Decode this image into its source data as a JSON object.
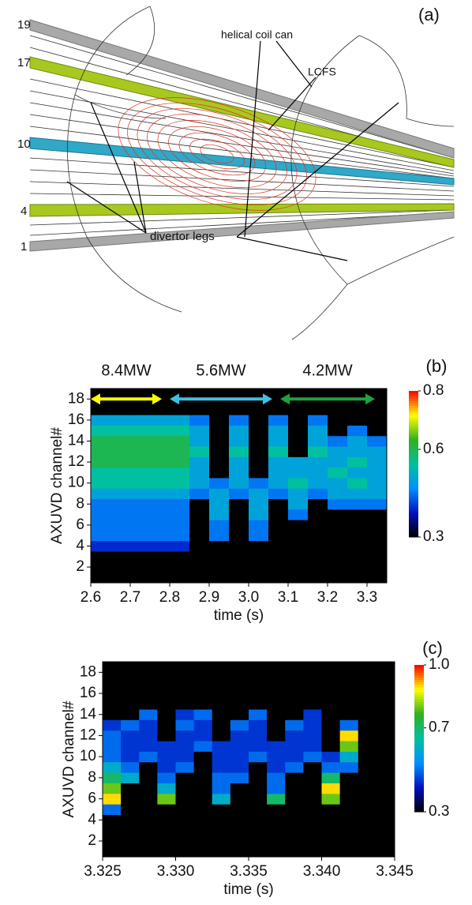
{
  "diagram": {
    "title": "(a)",
    "coil_labels": [
      "19",
      "17",
      "10",
      "4",
      "1"
    ],
    "annotations": [
      "helical coil can",
      "LCFS",
      "divertor legs"
    ]
  },
  "chart_data": [
    {
      "type": "heatmap",
      "title": "(b)",
      "xlabel": "time (s)",
      "ylabel": "AXUVD channel#",
      "xbins": [
        2.6,
        2.65,
        2.7,
        2.75,
        2.8,
        2.85,
        2.9,
        2.95,
        3.0,
        3.05,
        3.1,
        3.15,
        3.2,
        3.25,
        3.3,
        3.35
      ],
      "y": [
        1,
        2,
        3,
        4,
        5,
        6,
        7,
        8,
        9,
        10,
        11,
        12,
        13,
        14,
        15,
        16,
        17,
        18
      ],
      "z": [
        [
          0.3,
          0.3,
          0.3,
          0.3,
          0.3,
          0.3,
          0.3,
          0.3,
          0.3,
          0.3,
          0.3,
          0.3,
          0.3,
          0.3,
          0.3
        ],
        [
          0.3,
          0.3,
          0.3,
          0.3,
          0.3,
          0.3,
          0.3,
          0.3,
          0.3,
          0.3,
          0.3,
          0.3,
          0.3,
          0.3,
          0.3
        ],
        [
          0.3,
          0.3,
          0.3,
          0.3,
          0.3,
          0.3,
          0.3,
          0.3,
          0.3,
          0.3,
          0.3,
          0.3,
          0.3,
          0.3,
          0.3
        ],
        [
          0.4,
          0.4,
          0.4,
          0.4,
          0.4,
          0.3,
          0.3,
          0.3,
          0.3,
          0.3,
          0.3,
          0.3,
          0.3,
          0.3,
          0.3
        ],
        [
          0.45,
          0.45,
          0.45,
          0.45,
          0.45,
          0.3,
          0.45,
          0.3,
          0.45,
          0.3,
          0.3,
          0.3,
          0.3,
          0.3,
          0.3
        ],
        [
          0.45,
          0.45,
          0.45,
          0.45,
          0.45,
          0.3,
          0.45,
          0.3,
          0.45,
          0.3,
          0.3,
          0.3,
          0.3,
          0.3,
          0.3
        ],
        [
          0.45,
          0.45,
          0.45,
          0.45,
          0.45,
          0.3,
          0.5,
          0.3,
          0.5,
          0.3,
          0.45,
          0.3,
          0.3,
          0.3,
          0.3
        ],
        [
          0.45,
          0.45,
          0.45,
          0.45,
          0.45,
          0.3,
          0.5,
          0.3,
          0.5,
          0.3,
          0.5,
          0.3,
          0.45,
          0.45,
          0.45
        ],
        [
          0.5,
          0.5,
          0.5,
          0.5,
          0.5,
          0.45,
          0.5,
          0.45,
          0.5,
          0.45,
          0.5,
          0.45,
          0.5,
          0.5,
          0.5
        ],
        [
          0.55,
          0.55,
          0.55,
          0.55,
          0.55,
          0.5,
          0.45,
          0.5,
          0.45,
          0.5,
          0.55,
          0.5,
          0.5,
          0.55,
          0.5
        ],
        [
          0.55,
          0.55,
          0.55,
          0.55,
          0.55,
          0.5,
          0.3,
          0.5,
          0.3,
          0.5,
          0.5,
          0.5,
          0.55,
          0.5,
          0.5
        ],
        [
          0.6,
          0.6,
          0.6,
          0.6,
          0.6,
          0.5,
          0.3,
          0.5,
          0.3,
          0.5,
          0.5,
          0.5,
          0.5,
          0.55,
          0.5
        ],
        [
          0.6,
          0.6,
          0.6,
          0.6,
          0.6,
          0.55,
          0.3,
          0.55,
          0.3,
          0.55,
          0.3,
          0.55,
          0.5,
          0.5,
          0.5
        ],
        [
          0.6,
          0.6,
          0.6,
          0.6,
          0.6,
          0.5,
          0.3,
          0.5,
          0.3,
          0.5,
          0.3,
          0.5,
          0.45,
          0.5,
          0.45
        ],
        [
          0.55,
          0.55,
          0.55,
          0.55,
          0.55,
          0.5,
          0.3,
          0.5,
          0.3,
          0.5,
          0.3,
          0.5,
          0.3,
          0.45,
          0.3
        ],
        [
          0.5,
          0.5,
          0.5,
          0.5,
          0.5,
          0.45,
          0.3,
          0.45,
          0.3,
          0.45,
          0.3,
          0.45,
          0.3,
          0.3,
          0.3
        ],
        [
          0.3,
          0.3,
          0.3,
          0.3,
          0.3,
          0.3,
          0.3,
          0.3,
          0.3,
          0.3,
          0.3,
          0.3,
          0.3,
          0.3,
          0.3
        ],
        [
          0.3,
          0.3,
          0.3,
          0.3,
          0.3,
          0.3,
          0.3,
          0.3,
          0.3,
          0.3,
          0.3,
          0.3,
          0.3,
          0.3,
          0.3
        ]
      ],
      "xlim": [
        2.6,
        3.35
      ],
      "ylim": [
        0.5,
        19
      ],
      "xticks": [
        2.6,
        2.7,
        2.8,
        2.9,
        {
          "value": 3,
          "label": "3.0"
        },
        3.1,
        3.2,
        3.3
      ],
      "yticks": [
        2,
        4,
        6,
        8,
        10,
        12,
        14,
        16,
        18
      ],
      "clim": [
        0.3,
        0.8
      ],
      "cticks": [
        0.3,
        0.6,
        0.8
      ],
      "colorscale": [
        "#000000",
        "#0010c0",
        "#0090ff",
        "#00c0a0",
        "#30b020",
        "#ffff00",
        "#ff0000"
      ],
      "annotations": [
        {
          "text": "8.4MW",
          "x0": 2.6,
          "x1": 2.78,
          "y": 18,
          "color": "#ffff00"
        },
        {
          "text": "5.6MW",
          "x0": 2.8,
          "x1": 3.06,
          "y": 18,
          "color": "#40c0e0"
        },
        {
          "text": "4.2MW",
          "x0": 3.08,
          "x1": 3.32,
          "y": 18,
          "color": "#20a040"
        }
      ]
    },
    {
      "type": "heatmap",
      "title": "(c)",
      "xlabel": "time (s)",
      "ylabel": "AXUVD channel#",
      "xbins": [
        3.325,
        3.32625,
        3.3275,
        3.32875,
        3.33,
        3.33125,
        3.3325,
        3.33375,
        3.335,
        3.33625,
        3.3375,
        3.33875,
        3.34,
        3.34125,
        3.3425,
        3.34375,
        3.345
      ],
      "y": [
        1,
        2,
        3,
        4,
        5,
        6,
        7,
        8,
        9,
        10,
        11,
        12,
        13,
        14,
        15,
        16,
        17,
        18
      ],
      "z": [
        [
          0.3,
          0.3,
          0.3,
          0.3,
          0.3,
          0.3,
          0.3,
          0.3,
          0.3,
          0.3,
          0.3,
          0.3,
          0.3,
          0.3,
          0.3,
          0.3
        ],
        [
          0.3,
          0.3,
          0.3,
          0.3,
          0.3,
          0.3,
          0.3,
          0.3,
          0.3,
          0.3,
          0.3,
          0.3,
          0.3,
          0.3,
          0.3,
          0.3
        ],
        [
          0.3,
          0.3,
          0.3,
          0.3,
          0.3,
          0.3,
          0.3,
          0.3,
          0.3,
          0.3,
          0.3,
          0.3,
          0.3,
          0.3,
          0.3,
          0.3
        ],
        [
          0.3,
          0.3,
          0.3,
          0.3,
          0.3,
          0.3,
          0.3,
          0.3,
          0.3,
          0.3,
          0.3,
          0.3,
          0.3,
          0.3,
          0.3,
          0.3
        ],
        [
          0.5,
          0.3,
          0.3,
          0.3,
          0.3,
          0.3,
          0.3,
          0.3,
          0.3,
          0.3,
          0.3,
          0.3,
          0.3,
          0.3,
          0.3,
          0.3
        ],
        [
          0.9,
          0.3,
          0.3,
          0.8,
          0.3,
          0.3,
          0.6,
          0.3,
          0.3,
          0.7,
          0.3,
          0.3,
          0.8,
          0.3,
          0.3,
          0.3
        ],
        [
          0.8,
          0.3,
          0.3,
          0.6,
          0.3,
          0.3,
          0.5,
          0.3,
          0.3,
          0.5,
          0.3,
          0.3,
          0.9,
          0.3,
          0.3,
          0.3
        ],
        [
          0.7,
          0.6,
          0.3,
          0.5,
          0.3,
          0.3,
          0.5,
          0.5,
          0.3,
          0.5,
          0.3,
          0.3,
          0.7,
          0.3,
          0.3,
          0.3
        ],
        [
          0.6,
          0.5,
          0.3,
          0.45,
          0.5,
          0.3,
          0.45,
          0.45,
          0.3,
          0.45,
          0.5,
          0.3,
          0.5,
          0.5,
          0.3,
          0.3
        ],
        [
          0.5,
          0.45,
          0.5,
          0.45,
          0.45,
          0.3,
          0.45,
          0.45,
          0.5,
          0.45,
          0.45,
          0.5,
          0.45,
          0.6,
          0.3,
          0.3
        ],
        [
          0.5,
          0.45,
          0.45,
          0.45,
          0.45,
          0.5,
          0.45,
          0.45,
          0.45,
          0.45,
          0.45,
          0.45,
          0.3,
          0.8,
          0.3,
          0.3
        ],
        [
          0.5,
          0.45,
          0.45,
          0.3,
          0.45,
          0.45,
          0.3,
          0.45,
          0.45,
          0.3,
          0.45,
          0.45,
          0.3,
          0.9,
          0.3,
          0.3
        ],
        [
          0.45,
          0.5,
          0.45,
          0.3,
          0.5,
          0.45,
          0.3,
          0.5,
          0.45,
          0.3,
          0.5,
          0.45,
          0.3,
          0.5,
          0.3,
          0.3
        ],
        [
          0.3,
          0.3,
          0.5,
          0.3,
          0.45,
          0.5,
          0.3,
          0.3,
          0.5,
          0.3,
          0.3,
          0.45,
          0.3,
          0.3,
          0.3,
          0.3
        ],
        [
          0.3,
          0.3,
          0.3,
          0.3,
          0.3,
          0.3,
          0.3,
          0.3,
          0.3,
          0.3,
          0.3,
          0.3,
          0.3,
          0.3,
          0.3,
          0.3
        ],
        [
          0.3,
          0.3,
          0.3,
          0.3,
          0.3,
          0.3,
          0.3,
          0.3,
          0.3,
          0.3,
          0.3,
          0.3,
          0.3,
          0.3,
          0.3,
          0.3
        ],
        [
          0.3,
          0.3,
          0.3,
          0.3,
          0.3,
          0.3,
          0.3,
          0.3,
          0.3,
          0.3,
          0.3,
          0.3,
          0.3,
          0.3,
          0.3,
          0.3
        ],
        [
          0.3,
          0.3,
          0.3,
          0.3,
          0.3,
          0.3,
          0.3,
          0.3,
          0.3,
          0.3,
          0.3,
          0.3,
          0.3,
          0.3,
          0.3,
          0.3
        ]
      ],
      "xlim": [
        3.325,
        3.345
      ],
      "ylim": [
        0.5,
        19
      ],
      "xticks": [
        3.325,
        {
          "value": 3.33,
          "label": "3.330"
        },
        3.335,
        {
          "value": 3.34,
          "label": "3.340"
        },
        3.345
      ],
      "yticks": [
        2,
        4,
        6,
        8,
        10,
        12,
        14,
        16,
        18
      ],
      "clim": [
        0.3,
        1.0
      ],
      "cticks": [
        0.3,
        0.7,
        {
          "value": 1,
          "label": "1.0"
        }
      ],
      "colorscale": [
        "#000000",
        "#0010c0",
        "#0090ff",
        "#00c0a0",
        "#30b020",
        "#ffff00",
        "#ff0000"
      ]
    }
  ]
}
